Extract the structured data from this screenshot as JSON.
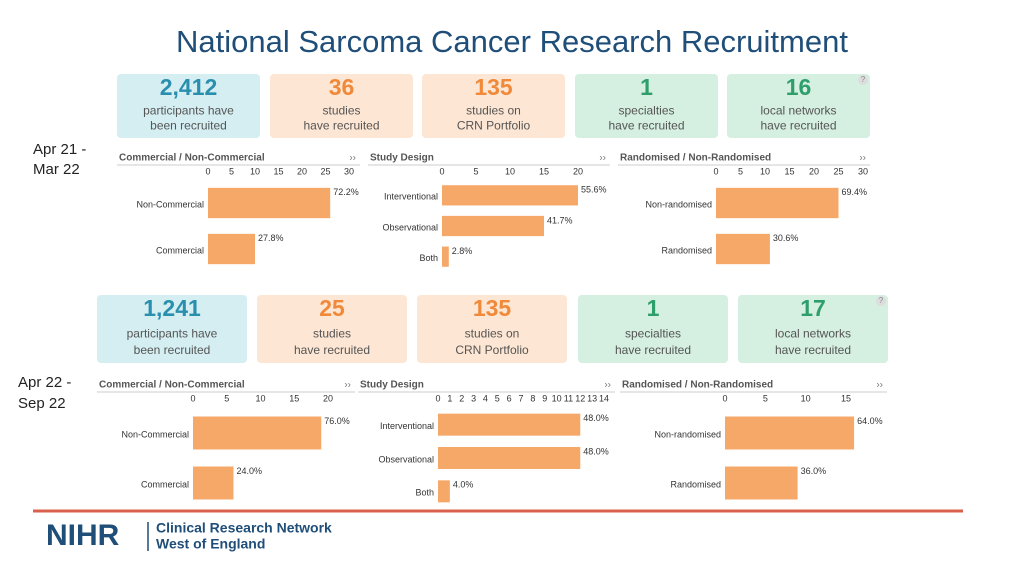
{
  "title": "National Sarcoma Cancer Research Recruitment",
  "periods": [
    {
      "label": [
        "Apr 21 -",
        "Mar 22"
      ],
      "cards": [
        {
          "count": "2,412",
          "line1": "participants have",
          "line2": "been recruited"
        },
        {
          "count": "36",
          "line1": "studies",
          "line2": "have recruited"
        },
        {
          "count": "135",
          "line1": "studies on",
          "line2": "CRN Portfolio"
        },
        {
          "count": "1",
          "line1": "specialties",
          "line2": "have recruited"
        },
        {
          "count": "16",
          "line1": "local networks",
          "line2": "have recruited"
        }
      ],
      "charts": [
        {
          "type": "bar",
          "title": "Commercial / Non-Commercial",
          "categories": [
            "Non-Commercial",
            "Commercial"
          ],
          "values": [
            26,
            10
          ],
          "shares": [
            "72.2%",
            "27.8%"
          ],
          "xlim": [
            0,
            30
          ],
          "xticks": [
            0,
            5,
            10,
            15,
            20,
            25,
            30
          ]
        },
        {
          "type": "bar",
          "title": "Study Design",
          "categories": [
            "Interventional",
            "Observational",
            "Both"
          ],
          "values": [
            20,
            15,
            1
          ],
          "shares": [
            "55.6%",
            "41.7%",
            "2.8%"
          ],
          "xlim": [
            0,
            20
          ],
          "xticks": [
            0,
            5,
            10,
            15,
            20
          ]
        },
        {
          "type": "bar",
          "title": "Randomised / Non-Randomised",
          "categories": [
            "Non-randomised",
            "Randomised"
          ],
          "values": [
            25,
            11
          ],
          "shares": [
            "69.4%",
            "30.6%"
          ],
          "xlim": [
            0,
            30
          ],
          "xticks": [
            0,
            5,
            10,
            15,
            20,
            25,
            30
          ]
        }
      ]
    },
    {
      "label": [
        "Apr 22 -",
        "Sep 22"
      ],
      "cards": [
        {
          "count": "1,241",
          "line1": "participants have",
          "line2": "been recruited"
        },
        {
          "count": "25",
          "line1": "studies",
          "line2": "have recruited"
        },
        {
          "count": "135",
          "line1": "studies on",
          "line2": "CRN Portfolio"
        },
        {
          "count": "1",
          "line1": "specialties",
          "line2": "have recruited"
        },
        {
          "count": "17",
          "line1": "local networks",
          "line2": "have recruited"
        }
      ],
      "charts": [
        {
          "type": "bar",
          "title": "Commercial / Non-Commercial",
          "categories": [
            "Non-Commercial",
            "Commercial"
          ],
          "values": [
            19,
            6
          ],
          "shares": [
            "76.0%",
            "24.0%"
          ],
          "xlim": [
            0,
            20
          ],
          "xticks": [
            0,
            5,
            10,
            15,
            20
          ]
        },
        {
          "type": "bar",
          "title": "Study Design",
          "categories": [
            "Interventional",
            "Observational",
            "Both"
          ],
          "values": [
            12,
            12,
            1
          ],
          "shares": [
            "48.0%",
            "48.0%",
            "4.0%"
          ],
          "xlim": [
            0,
            14
          ],
          "xticks": [
            0,
            1,
            2,
            3,
            4,
            5,
            6,
            7,
            8,
            9,
            10,
            11,
            12,
            13,
            14
          ]
        },
        {
          "type": "bar",
          "title": "Randomised / Non-Randomised",
          "categories": [
            "Non-randomised",
            "Randomised"
          ],
          "values": [
            16,
            9
          ],
          "shares": [
            "64.0%",
            "36.0%"
          ],
          "xlim": [
            0,
            15
          ],
          "xticks": [
            0,
            5,
            10,
            15
          ]
        }
      ]
    }
  ],
  "footer": {
    "logo": "NIHR",
    "line1": "Clinical Research Network",
    "line2": "West of England"
  }
}
